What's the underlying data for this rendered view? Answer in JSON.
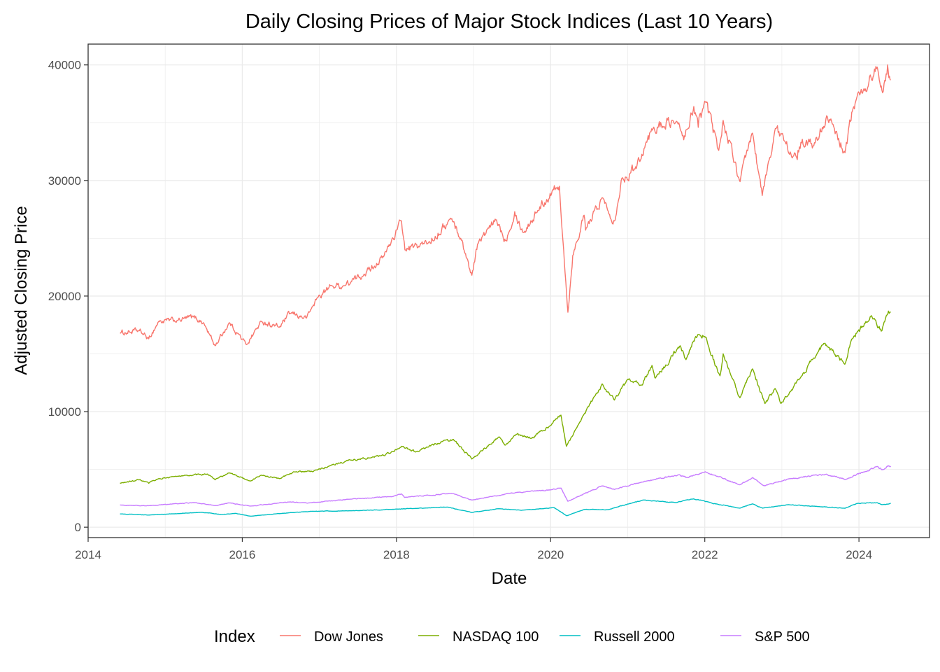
{
  "chart_data": {
    "type": "line",
    "title": "Daily Closing Prices of Major Stock Indices (Last 10 Years)",
    "xlabel": "Date",
    "ylabel": "Adjusted Closing Price",
    "x_ticks": [
      "2014",
      "2016",
      "2018",
      "2020",
      "2022",
      "2024"
    ],
    "y_ticks": [
      "0",
      "10000",
      "20000",
      "30000",
      "40000"
    ],
    "xlim": [
      "2014-01-01",
      "2024-12-01"
    ],
    "ylim": [
      -900,
      41800
    ],
    "grid": true,
    "legend": {
      "title": "Index",
      "position": "bottom"
    },
    "series": [
      {
        "name": "Dow Jones",
        "color": "#F8766D",
        "points": [
          [
            "2014-06-01",
            16800
          ],
          [
            "2014-09-01",
            17000
          ],
          [
            "2014-10-15",
            16300
          ],
          [
            "2014-12-01",
            17800
          ],
          [
            "2015-03-01",
            17900
          ],
          [
            "2015-05-15",
            18200
          ],
          [
            "2015-07-01",
            17700
          ],
          [
            "2015-08-25",
            15700
          ],
          [
            "2015-11-01",
            17700
          ],
          [
            "2016-01-20",
            15800
          ],
          [
            "2016-04-01",
            17800
          ],
          [
            "2016-06-25",
            17300
          ],
          [
            "2016-08-15",
            18500
          ],
          [
            "2016-11-01",
            18100
          ],
          [
            "2016-12-20",
            19800
          ],
          [
            "2017-03-01",
            20900
          ],
          [
            "2017-05-01",
            20900
          ],
          [
            "2017-08-01",
            21900
          ],
          [
            "2017-11-01",
            23400
          ],
          [
            "2018-01-25",
            26500
          ],
          [
            "2018-02-10",
            24000
          ],
          [
            "2018-06-01",
            24600
          ],
          [
            "2018-09-20",
            26700
          ],
          [
            "2018-11-01",
            25000
          ],
          [
            "2018-12-24",
            21800
          ],
          [
            "2019-01-20",
            24500
          ],
          [
            "2019-04-20",
            26600
          ],
          [
            "2019-06-01",
            24800
          ],
          [
            "2019-07-15",
            27300
          ],
          [
            "2019-08-25",
            25500
          ],
          [
            "2019-11-01",
            27400
          ],
          [
            "2020-01-15",
            29200
          ],
          [
            "2020-02-12",
            29500
          ],
          [
            "2020-03-23",
            18600
          ],
          [
            "2020-04-15",
            23500
          ],
          [
            "2020-06-08",
            27000
          ],
          [
            "2020-06-15",
            25700
          ],
          [
            "2020-09-01",
            28500
          ],
          [
            "2020-10-30",
            26500
          ],
          [
            "2020-12-01",
            30000
          ],
          [
            "2021-02-01",
            31000
          ],
          [
            "2021-05-01",
            34500
          ],
          [
            "2021-08-01",
            35200
          ],
          [
            "2021-09-30",
            33800
          ],
          [
            "2021-11-10",
            36400
          ],
          [
            "2021-12-01",
            34600
          ],
          [
            "2022-01-04",
            36800
          ],
          [
            "2022-03-08",
            32600
          ],
          [
            "2022-03-29",
            35200
          ],
          [
            "2022-06-17",
            29900
          ],
          [
            "2022-08-15",
            34100
          ],
          [
            "2022-09-30",
            28700
          ],
          [
            "2022-12-01",
            34500
          ],
          [
            "2023-03-15",
            31800
          ],
          [
            "2023-04-01",
            33300
          ],
          [
            "2023-06-01",
            33000
          ],
          [
            "2023-08-01",
            35600
          ],
          [
            "2023-10-27",
            32400
          ],
          [
            "2023-12-01",
            36000
          ],
          [
            "2024-01-05",
            37400
          ],
          [
            "2024-03-28",
            39800
          ],
          [
            "2024-04-19",
            37800
          ],
          [
            "2024-05-16",
            40000
          ],
          [
            "2024-05-31",
            38700
          ]
        ]
      },
      {
        "name": "NASDAQ 100",
        "color": "#7CAE00",
        "points": [
          [
            "2014-06-01",
            3800
          ],
          [
            "2014-09-01",
            4100
          ],
          [
            "2014-10-15",
            3800
          ],
          [
            "2014-12-01",
            4200
          ],
          [
            "2015-03-01",
            4400
          ],
          [
            "2015-07-20",
            4600
          ],
          [
            "2015-08-25",
            4100
          ],
          [
            "2015-11-01",
            4700
          ],
          [
            "2016-02-10",
            4000
          ],
          [
            "2016-04-01",
            4500
          ],
          [
            "2016-06-27",
            4200
          ],
          [
            "2016-09-01",
            4800
          ],
          [
            "2016-12-01",
            4800
          ],
          [
            "2017-03-01",
            5400
          ],
          [
            "2017-06-01",
            5800
          ],
          [
            "2017-09-01",
            6000
          ],
          [
            "2017-12-01",
            6400
          ],
          [
            "2018-01-25",
            7000
          ],
          [
            "2018-04-01",
            6500
          ],
          [
            "2018-08-30",
            7600
          ],
          [
            "2018-10-01",
            7500
          ],
          [
            "2018-12-24",
            5900
          ],
          [
            "2019-04-30",
            7800
          ],
          [
            "2019-06-01",
            7100
          ],
          [
            "2019-07-20",
            8000
          ],
          [
            "2019-10-01",
            7700
          ],
          [
            "2020-01-01",
            8800
          ],
          [
            "2020-02-19",
            9700
          ],
          [
            "2020-03-16",
            7000
          ],
          [
            "2020-06-01",
            9600
          ],
          [
            "2020-09-02",
            12400
          ],
          [
            "2020-10-30",
            11000
          ],
          [
            "2021-01-01",
            12800
          ],
          [
            "2021-03-08",
            12300
          ],
          [
            "2021-04-26",
            14000
          ],
          [
            "2021-05-12",
            12900
          ],
          [
            "2021-09-07",
            15700
          ],
          [
            "2021-10-04",
            14500
          ],
          [
            "2021-11-19",
            16500
          ],
          [
            "2022-01-01",
            16500
          ],
          [
            "2022-03-14",
            13100
          ],
          [
            "2022-03-29",
            15000
          ],
          [
            "2022-06-16",
            11200
          ],
          [
            "2022-08-15",
            13700
          ],
          [
            "2022-10-13",
            10700
          ],
          [
            "2022-11-30",
            12000
          ],
          [
            "2022-12-28",
            10700
          ],
          [
            "2023-04-01",
            13000
          ],
          [
            "2023-07-18",
            15900
          ],
          [
            "2023-10-26",
            14100
          ],
          [
            "2023-12-01",
            16300
          ],
          [
            "2024-03-01",
            18300
          ],
          [
            "2024-04-19",
            17000
          ],
          [
            "2024-05-20",
            18700
          ],
          [
            "2024-05-31",
            18600
          ]
        ]
      },
      {
        "name": "Russell 2000",
        "color": "#00BFC4",
        "points": [
          [
            "2014-06-01",
            1150
          ],
          [
            "2014-10-15",
            1050
          ],
          [
            "2015-06-23",
            1290
          ],
          [
            "2015-09-29",
            1100
          ],
          [
            "2015-12-01",
            1200
          ],
          [
            "2016-02-11",
            950
          ],
          [
            "2016-06-01",
            1150
          ],
          [
            "2016-12-01",
            1380
          ],
          [
            "2017-06-01",
            1420
          ],
          [
            "2017-12-01",
            1540
          ],
          [
            "2018-08-31",
            1740
          ],
          [
            "2018-12-24",
            1270
          ],
          [
            "2019-05-01",
            1600
          ],
          [
            "2019-08-15",
            1460
          ],
          [
            "2020-01-17",
            1700
          ],
          [
            "2020-03-18",
            990
          ],
          [
            "2020-06-08",
            1530
          ],
          [
            "2020-10-01",
            1520
          ],
          [
            "2021-03-15",
            2350
          ],
          [
            "2021-08-19",
            2130
          ],
          [
            "2021-11-08",
            2450
          ],
          [
            "2022-03-01",
            2000
          ],
          [
            "2022-06-16",
            1650
          ],
          [
            "2022-08-15",
            2020
          ],
          [
            "2022-10-01",
            1650
          ],
          [
            "2023-02-01",
            1950
          ],
          [
            "2023-10-27",
            1640
          ],
          [
            "2023-12-27",
            2070
          ],
          [
            "2024-03-28",
            2120
          ],
          [
            "2024-04-19",
            1950
          ],
          [
            "2024-05-31",
            2070
          ]
        ]
      },
      {
        "name": "S&P 500",
        "color": "#C77CFF",
        "points": [
          [
            "2014-06-01",
            1920
          ],
          [
            "2014-10-15",
            1860
          ],
          [
            "2015-05-21",
            2130
          ],
          [
            "2015-08-25",
            1870
          ],
          [
            "2015-11-01",
            2100
          ],
          [
            "2016-02-11",
            1830
          ],
          [
            "2016-08-15",
            2190
          ],
          [
            "2016-11-04",
            2080
          ],
          [
            "2017-06-01",
            2430
          ],
          [
            "2017-12-01",
            2640
          ],
          [
            "2018-01-26",
            2870
          ],
          [
            "2018-02-08",
            2580
          ],
          [
            "2018-09-20",
            2930
          ],
          [
            "2018-12-24",
            2350
          ],
          [
            "2019-07-26",
            3020
          ],
          [
            "2019-12-31",
            3230
          ],
          [
            "2020-02-19",
            3390
          ],
          [
            "2020-03-23",
            2240
          ],
          [
            "2020-09-02",
            3580
          ],
          [
            "2020-10-30",
            3270
          ],
          [
            "2021-04-01",
            4000
          ],
          [
            "2021-09-02",
            4540
          ],
          [
            "2021-10-04",
            4300
          ],
          [
            "2022-01-03",
            4800
          ],
          [
            "2022-06-16",
            3670
          ],
          [
            "2022-08-16",
            4300
          ],
          [
            "2022-10-12",
            3580
          ],
          [
            "2023-02-02",
            4180
          ],
          [
            "2023-07-31",
            4590
          ],
          [
            "2023-10-27",
            4120
          ],
          [
            "2024-03-28",
            5250
          ],
          [
            "2024-04-19",
            4970
          ],
          [
            "2024-05-21",
            5320
          ],
          [
            "2024-05-31",
            5280
          ]
        ]
      }
    ]
  }
}
